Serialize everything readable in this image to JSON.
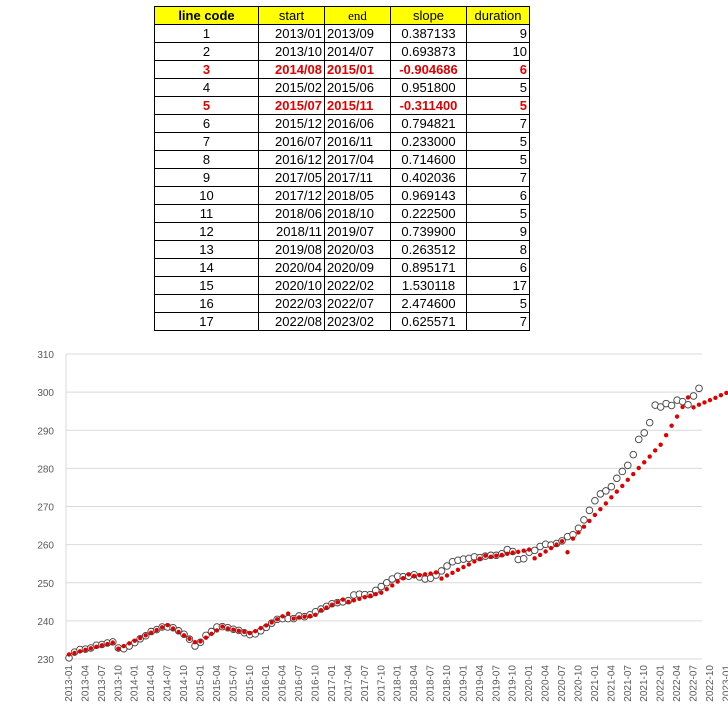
{
  "table": {
    "headers": [
      "line code",
      "start",
      "end",
      "slope",
      "duration"
    ],
    "highlight_color": "#e00000",
    "header_bg": "#ffff00",
    "rows": [
      {
        "code": "1",
        "start": "2013/01",
        "end": "2013/09",
        "slope": "0.387133",
        "duration": "9",
        "highlight": false
      },
      {
        "code": "2",
        "start": "2013/10",
        "end": "2014/07",
        "slope": "0.693873",
        "duration": "10",
        "highlight": false
      },
      {
        "code": "3",
        "start": "2014/08",
        "end": "2015/01",
        "slope": "-0.904686",
        "duration": "6",
        "highlight": true
      },
      {
        "code": "4",
        "start": "2015/02",
        "end": "2015/06",
        "slope": "0.951800",
        "duration": "5",
        "highlight": false
      },
      {
        "code": "5",
        "start": "2015/07",
        "end": "2015/11",
        "slope": "-0.311400",
        "duration": "5",
        "highlight": true
      },
      {
        "code": "6",
        "start": "2015/12",
        "end": "2016/06",
        "slope": "0.794821",
        "duration": "7",
        "highlight": false
      },
      {
        "code": "7",
        "start": "2016/07",
        "end": "2016/11",
        "slope": "0.233000",
        "duration": "5",
        "highlight": false
      },
      {
        "code": "8",
        "start": "2016/12",
        "end": "2017/04",
        "slope": "0.714600",
        "duration": "5",
        "highlight": false
      },
      {
        "code": "9",
        "start": "2017/05",
        "end": "2017/11",
        "slope": "0.402036",
        "duration": "7",
        "highlight": false
      },
      {
        "code": "10",
        "start": "2017/12",
        "end": "2018/05",
        "slope": "0.969143",
        "duration": "6",
        "highlight": false
      },
      {
        "code": "11",
        "start": "2018/06",
        "end": "2018/10",
        "slope": "0.222500",
        "duration": "5",
        "highlight": false
      },
      {
        "code": "12",
        "start": "2018/11",
        "end": "2019/07",
        "slope": "0.739900",
        "duration": "9",
        "highlight": false
      },
      {
        "code": "13",
        "start": "2019/08",
        "end": "2020/03",
        "slope": "0.263512",
        "duration": "8",
        "highlight": false
      },
      {
        "code": "14",
        "start": "2020/04",
        "end": "2020/09",
        "slope": "0.895171",
        "duration": "6",
        "highlight": false
      },
      {
        "code": "15",
        "start": "2020/10",
        "end": "2022/02",
        "slope": "1.530118",
        "duration": "17",
        "highlight": false
      },
      {
        "code": "16",
        "start": "2022/03",
        "end": "2022/07",
        "slope": "2.474600",
        "duration": "5",
        "highlight": false
      },
      {
        "code": "17",
        "start": "2022/08",
        "end": "2023/02",
        "slope": "0.625571",
        "duration": "7",
        "highlight": false
      }
    ]
  },
  "chart_data": {
    "type": "scatter",
    "title": "",
    "xlabel": "",
    "ylabel": "",
    "ylim": [
      230,
      310
    ],
    "yticks": [
      230,
      240,
      250,
      260,
      270,
      280,
      290,
      300,
      310
    ],
    "x_start": "2013-01",
    "x_end": "2023-02",
    "xtick_labels": [
      "2013-01",
      "2013-04",
      "2013-07",
      "2013-10",
      "2014-01",
      "2014-04",
      "2014-07",
      "2014-10",
      "2015-01",
      "2015-04",
      "2015-07",
      "2015-10",
      "2016-01",
      "2016-04",
      "2016-07",
      "2016-10",
      "2017-01",
      "2017-04",
      "2017-07",
      "2017-10",
      "2018-01",
      "2018-04",
      "2018-07",
      "2018-10",
      "2019-01",
      "2019-04",
      "2019-07",
      "2019-10",
      "2020-01",
      "2020-04",
      "2020-07",
      "2020-10",
      "2021-01",
      "2021-04",
      "2021-07",
      "2021-10",
      "2022-01",
      "2022-04",
      "2022-07",
      "2022-10",
      "2023-01"
    ],
    "grid": "horizontal",
    "series": [
      {
        "marker": "open-circle",
        "color": "#404040",
        "values": [
          230.3,
          231.8,
          232.5,
          232.6,
          232.9,
          233.6,
          233.8,
          234.2,
          234.5,
          232.9,
          232.7,
          233.4,
          234.3,
          235.3,
          236.1,
          237.2,
          237.7,
          238.4,
          238.4,
          238.2,
          237.4,
          236.5,
          235.2,
          233.4,
          234.4,
          236.2,
          237.2,
          238.4,
          238.5,
          238.2,
          237.8,
          237.5,
          236.9,
          236.4,
          236.6,
          237.4,
          238.3,
          239.4,
          240.4,
          240.6,
          240.6,
          240.6,
          241.3,
          241.1,
          241.6,
          242.4,
          243.1,
          243.8,
          244.5,
          244.8,
          245.0,
          245.3,
          246.8,
          247.0,
          246.9,
          246.9,
          248.0,
          249.0,
          250.0,
          251.0,
          251.7,
          251.6,
          251.7,
          252.1,
          251.5,
          251.0,
          251.2,
          252.0,
          253.1,
          254.4,
          255.5,
          255.9,
          256.2,
          256.4,
          256.8,
          256.6,
          257.0,
          257.2,
          257.2,
          257.6,
          258.7,
          258.2,
          256.1,
          256.3,
          258.0,
          258.5,
          259.5,
          260.1,
          259.9,
          260.3,
          261.0,
          262.1,
          262.6,
          264.3,
          266.5,
          269.0,
          271.5,
          273.3,
          274.1,
          275.2,
          277.4,
          279.2,
          280.8,
          283.6,
          287.6,
          289.3,
          292.0,
          296.6,
          296.1,
          297.0,
          296.5,
          297.9,
          297.5,
          296.7,
          299.0,
          301.0
        ]
      },
      {
        "marker": "filled-dot",
        "color": "#e00000",
        "values": [
          231.2,
          231.6,
          232.0,
          232.4,
          232.8,
          233.2,
          233.6,
          233.9,
          234.3,
          232.7,
          233.4,
          234.1,
          234.8,
          235.5,
          236.2,
          236.9,
          237.6,
          238.3,
          238.9,
          238.0,
          237.1,
          236.2,
          235.3,
          234.4,
          234.6,
          235.6,
          236.6,
          237.5,
          238.5,
          238.0,
          237.7,
          237.4,
          237.1,
          236.8,
          237.3,
          238.1,
          238.8,
          239.6,
          240.4,
          241.2,
          241.9,
          240.6,
          240.9,
          241.1,
          241.3,
          241.6,
          242.8,
          243.5,
          244.2,
          244.9,
          245.6,
          245.0,
          245.4,
          245.8,
          246.2,
          246.6,
          247.0,
          247.4,
          248.3,
          249.3,
          250.3,
          251.2,
          252.2,
          251.8,
          252.0,
          252.2,
          252.4,
          252.7,
          251.1,
          251.9,
          252.6,
          253.4,
          254.1,
          254.8,
          255.6,
          256.3,
          257.1,
          256.8,
          257.1,
          257.3,
          257.6,
          257.9,
          258.1,
          258.4,
          258.7,
          256.4,
          257.3,
          258.2,
          259.1,
          260.0,
          260.9,
          258.0,
          261.6,
          263.2,
          264.7,
          266.2,
          267.8,
          269.3,
          270.8,
          272.4,
          273.9,
          275.4,
          277.0,
          278.5,
          280.1,
          281.6,
          283.1,
          284.7,
          286.2,
          288.7,
          291.2,
          293.6,
          296.1,
          298.6,
          296.0,
          296.7,
          297.3,
          297.9,
          298.5,
          299.2,
          299.8,
          300.4
        ]
      }
    ]
  }
}
